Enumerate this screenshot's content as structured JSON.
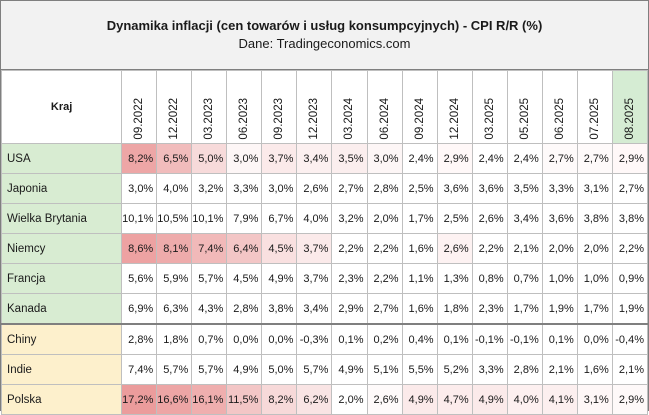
{
  "title": "Dynamika inflacji (cen towarów i usług konsumpcyjnych) - CPI R/R (%)",
  "subtitle": "Dane: Tradingeconomics.com",
  "corner_label": "Kraj",
  "dates": [
    "09.2022",
    "12.2022",
    "03.2023",
    "06.2023",
    "09.2023",
    "12.2023",
    "03.2024",
    "06.2024",
    "09.2024",
    "12.2024",
    "03.2025",
    "05.2025",
    "06.2025",
    "07.2025",
    "08.2025"
  ],
  "rows": [
    {
      "country": "USA",
      "group": "g",
      "values": [
        "8,2%",
        "6,5%",
        "5,0%",
        "3,0%",
        "3,7%",
        "3,4%",
        "3,5%",
        "3,0%",
        "2,4%",
        "2,9%",
        "2,4%",
        "2,4%",
        "2,7%",
        "2,7%",
        "2,9%"
      ],
      "colors": [
        "#eda6a6",
        "#f1bcbc",
        "#f7dada",
        "#fdf6f6",
        "#fbeaea",
        "#fcf0f0",
        "#fbeeee",
        "#fdf6f6",
        "#ffffff",
        "#fff8f8",
        "#ffffff",
        "#ffffff",
        "#fefafa",
        "#fefafa",
        "#fff8f8"
      ]
    },
    {
      "country": "Japonia",
      "group": "g",
      "values": [
        "3,0%",
        "4,0%",
        "3,2%",
        "3,3%",
        "3,0%",
        "2,6%",
        "2,7%",
        "2,8%",
        "2,5%",
        "3,6%",
        "3,6%",
        "3,5%",
        "3,3%",
        "3,1%",
        "2,7%"
      ],
      "colors": [
        "#ffffff",
        "#ffffff",
        "#ffffff",
        "#ffffff",
        "#ffffff",
        "#ffffff",
        "#ffffff",
        "#ffffff",
        "#ffffff",
        "#ffffff",
        "#ffffff",
        "#ffffff",
        "#ffffff",
        "#ffffff",
        "#ffffff"
      ]
    },
    {
      "country": "Wielka Brytania",
      "group": "g",
      "values": [
        "10,1%",
        "10,5%",
        "10,1%",
        "7,9%",
        "6,7%",
        "4,0%",
        "3,2%",
        "2,0%",
        "1,7%",
        "2,5%",
        "2,6%",
        "3,4%",
        "3,6%",
        "3,8%",
        "3,8%"
      ],
      "colors": [
        "#ffffff",
        "#ffffff",
        "#ffffff",
        "#ffffff",
        "#ffffff",
        "#ffffff",
        "#ffffff",
        "#ffffff",
        "#ffffff",
        "#ffffff",
        "#ffffff",
        "#ffffff",
        "#ffffff",
        "#ffffff",
        "#ffffff"
      ]
    },
    {
      "country": "Niemcy",
      "group": "g",
      "values": [
        "8,6%",
        "8,1%",
        "7,4%",
        "6,4%",
        "4,5%",
        "3,7%",
        "2,2%",
        "2,2%",
        "1,6%",
        "2,6%",
        "2,2%",
        "2,1%",
        "2,0%",
        "2,0%",
        "2,2%"
      ],
      "colors": [
        "#eda2a2",
        "#eeabab",
        "#f1b9b9",
        "#f3c6c6",
        "#f9e0e0",
        "#fbeaea",
        "#ffffff",
        "#ffffff",
        "#ffffff",
        "#fdf2f2",
        "#ffffff",
        "#ffffff",
        "#ffffff",
        "#ffffff",
        "#ffffff"
      ]
    },
    {
      "country": "Francja",
      "group": "g",
      "values": [
        "5,6%",
        "5,9%",
        "5,7%",
        "4,5%",
        "4,9%",
        "3,7%",
        "2,3%",
        "2,2%",
        "1,1%",
        "1,3%",
        "0,8%",
        "0,7%",
        "1,0%",
        "1,0%",
        "0,9%"
      ],
      "colors": [
        "#ffffff",
        "#ffffff",
        "#ffffff",
        "#ffffff",
        "#ffffff",
        "#ffffff",
        "#ffffff",
        "#ffffff",
        "#ffffff",
        "#ffffff",
        "#ffffff",
        "#ffffff",
        "#ffffff",
        "#ffffff",
        "#ffffff"
      ]
    },
    {
      "country": "Kanada",
      "group": "g",
      "values": [
        "6,9%",
        "6,3%",
        "4,3%",
        "2,8%",
        "3,8%",
        "3,4%",
        "2,9%",
        "2,7%",
        "1,6%",
        "1,8%",
        "2,3%",
        "1,7%",
        "1,9%",
        "1,7%",
        "1,9%"
      ],
      "colors": [
        "#ffffff",
        "#ffffff",
        "#ffffff",
        "#ffffff",
        "#ffffff",
        "#ffffff",
        "#ffffff",
        "#ffffff",
        "#ffffff",
        "#ffffff",
        "#ffffff",
        "#ffffff",
        "#ffffff",
        "#ffffff",
        "#ffffff"
      ]
    },
    {
      "country": "Chiny",
      "group": "y",
      "values": [
        "2,8%",
        "1,8%",
        "0,7%",
        "0,0%",
        "0,0%",
        "-0,3%",
        "0,1%",
        "0,2%",
        "0,4%",
        "0,1%",
        "-0,1%",
        "-0,1%",
        "0,1%",
        "0,0%",
        "-0,4%"
      ],
      "colors": [
        "#ffffff",
        "#ffffff",
        "#ffffff",
        "#ffffff",
        "#ffffff",
        "#ffffff",
        "#ffffff",
        "#ffffff",
        "#ffffff",
        "#ffffff",
        "#ffffff",
        "#ffffff",
        "#ffffff",
        "#ffffff",
        "#ffffff"
      ]
    },
    {
      "country": "Indie",
      "group": "y",
      "values": [
        "7,4%",
        "5,7%",
        "5,7%",
        "4,9%",
        "5,0%",
        "5,7%",
        "4,9%",
        "5,1%",
        "5,5%",
        "5,2%",
        "3,3%",
        "2,8%",
        "2,1%",
        "1,6%",
        "2,1%"
      ],
      "colors": [
        "#ffffff",
        "#ffffff",
        "#ffffff",
        "#ffffff",
        "#ffffff",
        "#ffffff",
        "#ffffff",
        "#ffffff",
        "#ffffff",
        "#ffffff",
        "#ffffff",
        "#ffffff",
        "#ffffff",
        "#ffffff",
        "#ffffff"
      ]
    },
    {
      "country": "Polska",
      "group": "y",
      "values": [
        "17,2%",
        "16,6%",
        "16,1%",
        "11,5%",
        "8,2%",
        "6,2%",
        "2,0%",
        "2,6%",
        "4,9%",
        "4,7%",
        "4,9%",
        "4,0%",
        "4,1%",
        "3,1%",
        "2,9%"
      ],
      "colors": [
        "#eb9c9c",
        "#eda5a5",
        "#efaeae",
        "#f3c6c6",
        "#f7d9d9",
        "#f9e4e4",
        "#ffffff",
        "#fefafa",
        "#fbeaea",
        "#fcecec",
        "#fbeaea",
        "#fdf0f0",
        "#fcefef",
        "#fef7f7",
        "#fef9f9"
      ]
    }
  ]
}
